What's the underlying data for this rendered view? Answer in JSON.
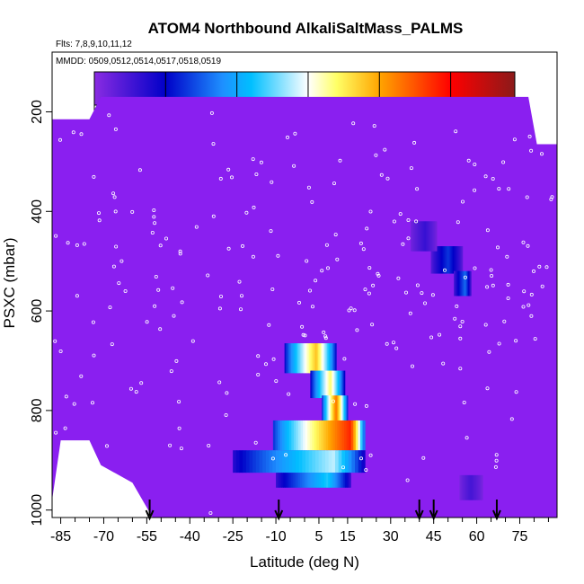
{
  "chart_data": {
    "type": "heatmap",
    "title": "ATOM4 Northbound AlkaliSaltMass_PALMS",
    "subtitle_flights": "Flts: 7,8,9,10,11,12",
    "subtitle_dates": "MMDD: 0509,0512,0514,0517,0518,0519",
    "xlabel": "Latitude (deg N)",
    "ylabel": "PSXC (mbar)",
    "xlim": [
      -88,
      88
    ],
    "ylim": [
      1015,
      80
    ],
    "y_reversed": true,
    "x_ticks": [
      -85,
      -70,
      -55,
      -40,
      -25,
      -10,
      5,
      15,
      30,
      45,
      60,
      75
    ],
    "x_minor_ticks": [
      -80,
      -75,
      -65,
      -60,
      -50,
      -45,
      -35,
      -30,
      -20,
      -15,
      -5,
      0,
      10,
      20,
      25,
      35,
      40,
      50,
      55,
      65,
      70,
      80,
      85
    ],
    "y_ticks": [
      200,
      400,
      600,
      800,
      1000
    ],
    "colorbar": {
      "range": [
        0,
        5.9
      ],
      "ticks": [
        0,
        1,
        2,
        3,
        4,
        5
      ],
      "colors": [
        "#8a2be2",
        "#0000c8",
        "#1e90ff",
        "#00bfff",
        "#ffffff",
        "#ffff66",
        "#ffa500",
        "#ff0000",
        "#8b1a1a"
      ],
      "color_stops": [
        0,
        1,
        1.8,
        2.2,
        3,
        3.4,
        4,
        5,
        5.9
      ]
    },
    "background_color": "#8a1ff0",
    "curtain_envelope": [
      {
        "x": -88,
        "top": 215,
        "bottom": 980
      },
      {
        "x": -85,
        "top": 215,
        "bottom": 860
      },
      {
        "x": -80,
        "top": 215,
        "bottom": 860
      },
      {
        "x": -75,
        "top": 215,
        "bottom": 860
      },
      {
        "x": -71,
        "top": 170,
        "bottom": 910
      },
      {
        "x": -60,
        "top": 170,
        "bottom": 945
      },
      {
        "x": -53,
        "top": 170,
        "bottom": 1015
      },
      {
        "x": 78,
        "top": 170,
        "bottom": 1015
      },
      {
        "x": 81,
        "top": 265,
        "bottom": 1015
      },
      {
        "x": 88,
        "top": 265,
        "bottom": 1015
      }
    ],
    "enhancement_regions": [
      {
        "lat_start": -7,
        "lat_end": 11,
        "p_top": 665,
        "p_bottom": 725,
        "peak": 3.8,
        "peak_lat": 4
      },
      {
        "lat_start": 2,
        "lat_end": 14,
        "p_top": 720,
        "p_bottom": 775,
        "peak": 3.4,
        "peak_lat": 9
      },
      {
        "lat_start": 6,
        "lat_end": 15,
        "p_top": 770,
        "p_bottom": 825,
        "peak": 4.3,
        "peak_lat": 11
      },
      {
        "lat_start": -11,
        "lat_end": 21,
        "p_top": 820,
        "p_bottom": 880,
        "peak": 4.8,
        "peak_lat": 16
      },
      {
        "lat_start": -25,
        "lat_end": 21,
        "p_top": 880,
        "p_bottom": 925,
        "peak": 2.8,
        "peak_lat": 10
      },
      {
        "lat_start": -10,
        "lat_end": 16,
        "p_top": 925,
        "p_bottom": 955,
        "peak": 2.3,
        "peak_lat": 8
      },
      {
        "lat_start": 44,
        "lat_end": 55,
        "p_top": 470,
        "p_bottom": 525,
        "peak": 1.3,
        "peak_lat": 50
      },
      {
        "lat_start": 52,
        "lat_end": 58,
        "p_top": 520,
        "p_bottom": 570,
        "peak": 1.6,
        "peak_lat": 56
      },
      {
        "lat_start": 37,
        "lat_end": 46,
        "p_top": 420,
        "p_bottom": 480,
        "peak": 0.6,
        "peak_lat": 42
      },
      {
        "lat_start": 54,
        "lat_end": 62,
        "p_top": 930,
        "p_bottom": 980,
        "peak": 0.5,
        "peak_lat": 58
      }
    ],
    "arrows_at_latitude": [
      -54,
      -9,
      40,
      45,
      67
    ]
  }
}
